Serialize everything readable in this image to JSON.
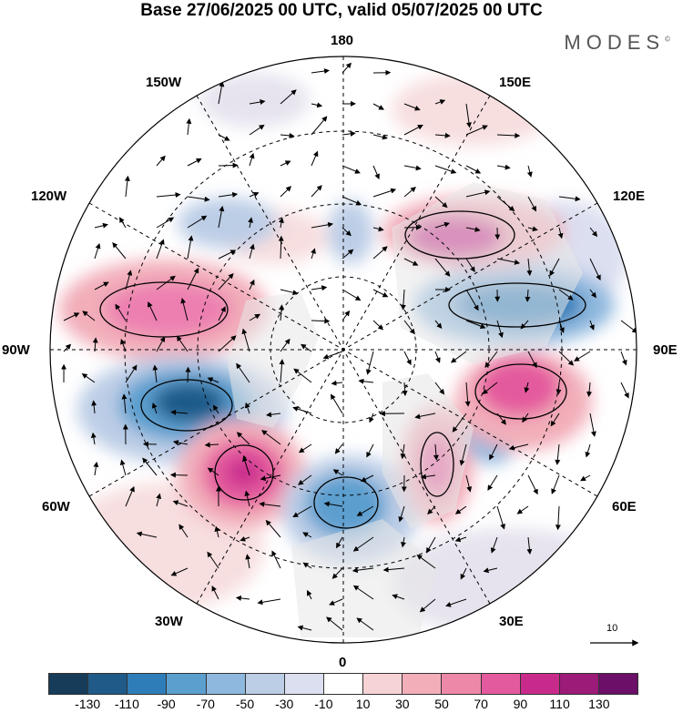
{
  "header": {
    "title": "Base 27/06/2025 00 UTC, valid 05/07/2025 00 UTC",
    "brand": "MODES"
  },
  "map": {
    "longitude_labels": {
      "top": "180",
      "bottom": "0",
      "left": "90W",
      "right": "90E",
      "upper_left_outer": "150W",
      "upper_left_inner": "120W",
      "upper_right_outer": "150E",
      "upper_right_inner": "120E",
      "lower_left_inner": "60W",
      "lower_left_outer": "30W",
      "lower_right_inner": "60E",
      "lower_right_outer": "30E"
    },
    "vector_scale_label": "10"
  },
  "colorbar": {
    "colors": [
      "#173c5a",
      "#1f5a89",
      "#2f7db8",
      "#5b9fcf",
      "#8fb8de",
      "#bccde6",
      "#dcdff0",
      "#ffffff",
      "#f6d4d6",
      "#f2aeb9",
      "#ee88a8",
      "#e45a9e",
      "#c82a8c",
      "#9c1a78",
      "#6b0f68"
    ],
    "tick_labels": [
      "-130",
      "-110",
      "-90",
      "-70",
      "-50",
      "-30",
      "-10",
      "10",
      "30",
      "50",
      "70",
      "90",
      "110",
      "130"
    ]
  }
}
